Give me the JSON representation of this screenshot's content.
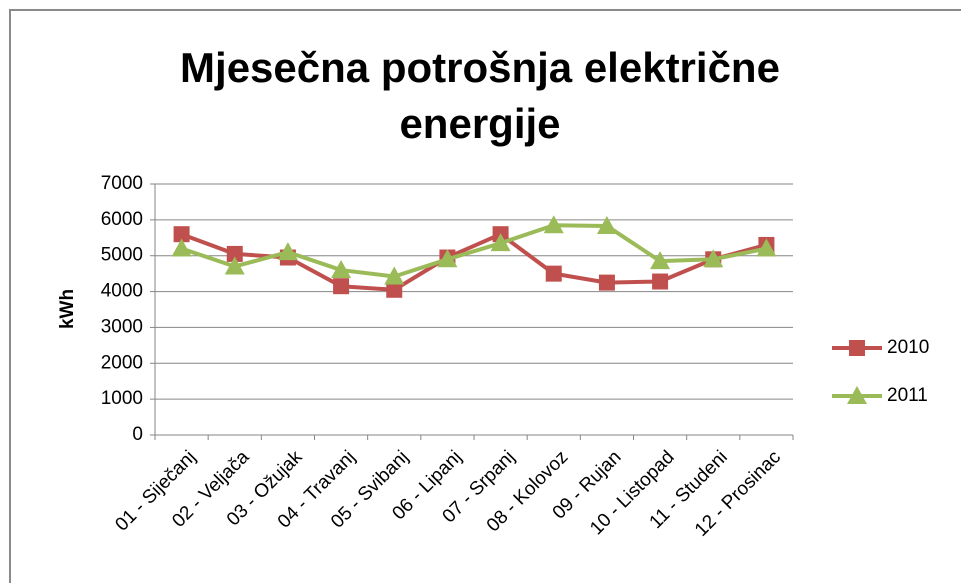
{
  "chart_data": {
    "type": "line",
    "title": "Mjesečna potrošnja električne energije",
    "ylabel": "kWh",
    "categories": [
      "01 - Siječanj",
      "02 - Veljača",
      "03 - Ožujak",
      "04 - Travanj",
      "05 - Svibanj",
      "06 - Lipanj",
      "07 - Srpanj",
      "08 - Kolovoz",
      "09 - Rujan",
      "10 - Listopad",
      "11 - Studeni",
      "12 - Prosinac"
    ],
    "series": [
      {
        "name": "2010",
        "color": "#c0504d",
        "marker": "square",
        "values": [
          5600,
          5050,
          4950,
          4150,
          4050,
          4950,
          5600,
          4500,
          4250,
          4280,
          4900,
          5300
        ]
      },
      {
        "name": "2011",
        "color": "#9bbb59",
        "marker": "triangle",
        "values": [
          5200,
          4700,
          5100,
          4600,
          4420,
          4900,
          5350,
          5850,
          5830,
          4850,
          4900,
          5200
        ]
      }
    ],
    "ylim": [
      0,
      7000
    ],
    "yticks": [
      0,
      1000,
      2000,
      3000,
      4000,
      5000,
      6000,
      7000
    ],
    "grid": true,
    "legend": "right"
  }
}
